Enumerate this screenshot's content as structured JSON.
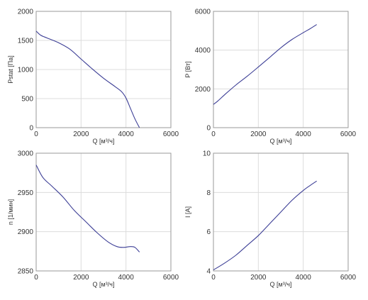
{
  "chart_data": [
    {
      "type": "line",
      "xlabel": "Q [м³/ч]",
      "ylabel": "Pstat [Па]",
      "xlim": [
        0,
        6000
      ],
      "ylim": [
        0,
        2000
      ],
      "xticks": [
        0,
        2000,
        4000,
        6000
      ],
      "yticks": [
        0,
        500,
        1000,
        1500,
        2000
      ],
      "grid": true,
      "series": [
        {
          "x": [
            0,
            200,
            500,
            1000,
            1500,
            2000,
            2500,
            3000,
            3500,
            3800,
            4000,
            4200,
            4400,
            4600
          ],
          "y": [
            1660,
            1590,
            1540,
            1460,
            1350,
            1180,
            1010,
            850,
            710,
            620,
            510,
            330,
            150,
            0
          ]
        }
      ]
    },
    {
      "type": "line",
      "xlabel": "Q [м³/ч]",
      "ylabel": "P [Вт]",
      "xlim": [
        0,
        6000
      ],
      "ylim": [
        0,
        6000
      ],
      "xticks": [
        0,
        2000,
        4000,
        6000
      ],
      "yticks": [
        0,
        2000,
        4000,
        6000
      ],
      "grid": true,
      "series": [
        {
          "x": [
            0,
            200,
            500,
            1000,
            1500,
            2000,
            2500,
            3000,
            3500,
            4000,
            4300,
            4600
          ],
          "y": [
            1200,
            1380,
            1700,
            2200,
            2650,
            3130,
            3620,
            4120,
            4550,
            4900,
            5100,
            5320
          ]
        }
      ]
    },
    {
      "type": "line",
      "xlabel": "Q [м³/ч]",
      "ylabel": "n [1/мин]",
      "xlim": [
        0,
        6000
      ],
      "ylim": [
        2850,
        3000
      ],
      "xticks": [
        0,
        2000,
        4000,
        6000
      ],
      "yticks": [
        2850,
        2900,
        2950,
        3000
      ],
      "grid": true,
      "series": [
        {
          "x": [
            0,
            300,
            700,
            1200,
            1700,
            2200,
            2700,
            3200,
            3600,
            3900,
            4200,
            4400,
            4600
          ],
          "y": [
            2985,
            2969,
            2958,
            2944,
            2927,
            2913,
            2899,
            2887,
            2881,
            2880,
            2881,
            2880,
            2874
          ]
        }
      ]
    },
    {
      "type": "line",
      "xlabel": "Q [м³/ч]",
      "ylabel": "I [A]",
      "xlim": [
        0,
        6000
      ],
      "ylim": [
        4,
        10
      ],
      "xticks": [
        0,
        2000,
        4000,
        6000
      ],
      "yticks": [
        4,
        6,
        8,
        10
      ],
      "grid": true,
      "series": [
        {
          "x": [
            0,
            500,
            1000,
            1500,
            2000,
            2500,
            3000,
            3500,
            4000,
            4300,
            4600
          ],
          "y": [
            4.05,
            4.4,
            4.8,
            5.3,
            5.8,
            6.4,
            7.0,
            7.6,
            8.1,
            8.35,
            8.58
          ]
        }
      ]
    }
  ],
  "colors": {
    "series": "#3d3f96",
    "grid": "#dcdcdc",
    "axis": "#9a9a9a",
    "text": "#333333"
  }
}
